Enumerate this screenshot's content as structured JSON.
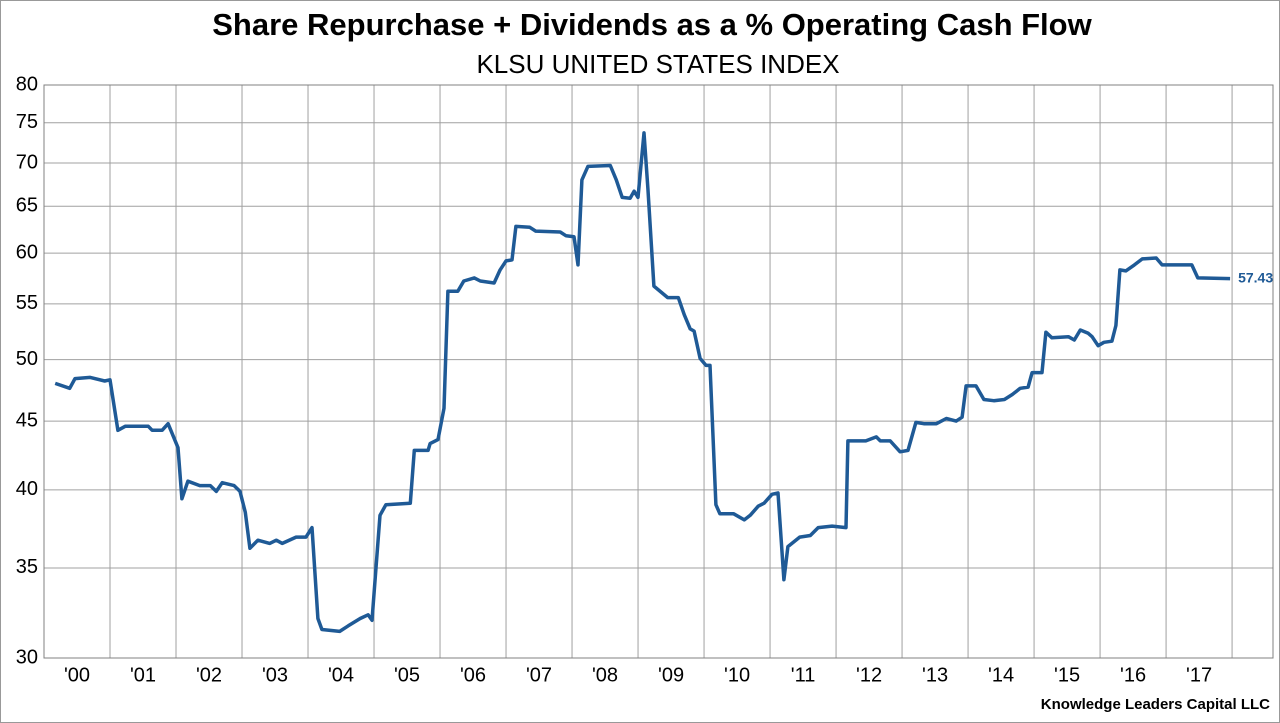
{
  "chart_data": {
    "type": "line",
    "title": "Share Repurchase + Dividends as a % Operating Cash Flow",
    "subtitle": "KLSU UNITED STATES INDEX",
    "source": "Knowledge Leaders Capital LLC",
    "color": "#1f5a96",
    "log_scale": true,
    "grid": true,
    "ylim": [
      30,
      80
    ],
    "yticks": [
      30,
      35,
      40,
      45,
      50,
      55,
      60,
      65,
      70,
      75,
      80
    ],
    "xlim": [
      2000,
      2018.62
    ],
    "xticks": [
      {
        "value": 2000,
        "label": "'00"
      },
      {
        "value": 2001,
        "label": "'01"
      },
      {
        "value": 2002,
        "label": "'02"
      },
      {
        "value": 2003,
        "label": "'03"
      },
      {
        "value": 2004,
        "label": "'04"
      },
      {
        "value": 2005,
        "label": "'05"
      },
      {
        "value": 2006,
        "label": "'06"
      },
      {
        "value": 2007,
        "label": "'07"
      },
      {
        "value": 2008,
        "label": "'08"
      },
      {
        "value": 2009,
        "label": "'09"
      },
      {
        "value": 2010,
        "label": "'10"
      },
      {
        "value": 2011,
        "label": "'11"
      },
      {
        "value": 2012,
        "label": "'12"
      },
      {
        "value": 2013,
        "label": "'13"
      },
      {
        "value": 2014,
        "label": "'14"
      },
      {
        "value": 2015,
        "label": "'15"
      },
      {
        "value": 2016,
        "label": "'16"
      },
      {
        "value": 2017,
        "label": "'17"
      },
      {
        "value": 2018,
        "label": null
      }
    ],
    "x": [
      2000.17,
      2000.39,
      2000.47,
      2000.7,
      2000.92,
      2001.0,
      2001.12,
      2001.23,
      2001.58,
      2001.64,
      2001.79,
      2001.88,
      2002.03,
      2002.09,
      2002.18,
      2002.36,
      2002.52,
      2002.61,
      2002.7,
      2002.88,
      2002.97,
      2003.05,
      2003.12,
      2003.24,
      2003.42,
      2003.52,
      2003.61,
      2003.82,
      2003.97,
      2004.06,
      2004.15,
      2004.21,
      2004.48,
      2004.61,
      2004.79,
      2004.91,
      2004.97,
      2005.09,
      2005.18,
      2005.55,
      2005.61,
      2005.82,
      2005.85,
      2005.97,
      2006.06,
      2006.12,
      2006.27,
      2006.36,
      2006.52,
      2006.61,
      2006.82,
      2006.91,
      2007.0,
      2007.09,
      2007.15,
      2007.36,
      2007.45,
      2007.82,
      2007.91,
      2008.03,
      2008.09,
      2008.15,
      2008.24,
      2008.58,
      2008.67,
      2008.76,
      2008.88,
      2008.94,
      2009.0,
      2009.09,
      2009.15,
      2009.24,
      2009.45,
      2009.61,
      2009.7,
      2009.79,
      2009.85,
      2009.94,
      2010.03,
      2010.09,
      2010.18,
      2010.24,
      2010.45,
      2010.61,
      2010.7,
      2010.82,
      2010.91,
      2011.03,
      2011.12,
      2011.21,
      2011.27,
      2011.45,
      2011.61,
      2011.73,
      2011.94,
      2012.15,
      2012.18,
      2012.45,
      2012.61,
      2012.67,
      2012.82,
      2012.97,
      2013.09,
      2013.21,
      2013.33,
      2013.52,
      2013.67,
      2013.82,
      2013.91,
      2013.97,
      2014.12,
      2014.24,
      2014.39,
      2014.55,
      2014.67,
      2014.79,
      2014.91,
      2014.97,
      2015.12,
      2015.18,
      2015.27,
      2015.52,
      2015.61,
      2015.7,
      2015.82,
      2015.88,
      2015.97,
      2016.06,
      2016.18,
      2016.24,
      2016.3,
      2016.39,
      2016.52,
      2016.64,
      2016.85,
      2016.94,
      2017.39,
      2017.48,
      2017.97
    ],
    "values": [
      48.0,
      47.6,
      48.4,
      48.5,
      48.2,
      48.3,
      44.3,
      44.6,
      44.6,
      44.3,
      44.3,
      44.8,
      43.0,
      39.4,
      40.6,
      40.3,
      40.3,
      39.9,
      40.5,
      40.3,
      39.9,
      38.5,
      36.2,
      36.7,
      36.5,
      36.7,
      36.5,
      36.9,
      36.9,
      37.5,
      32.1,
      31.5,
      31.4,
      31.7,
      32.1,
      32.3,
      32.0,
      38.3,
      39.0,
      39.1,
      42.8,
      42.8,
      43.3,
      43.6,
      46.0,
      56.2,
      56.2,
      57.2,
      57.5,
      57.2,
      57.0,
      58.3,
      59.2,
      59.3,
      62.8,
      62.7,
      62.3,
      62.2,
      61.8,
      61.7,
      58.8,
      68.0,
      69.6,
      69.7,
      68.0,
      66.0,
      65.9,
      66.7,
      66.0,
      73.7,
      67.0,
      56.7,
      55.6,
      55.6,
      54.0,
      52.7,
      52.5,
      50.1,
      49.5,
      49.5,
      39.0,
      38.4,
      38.4,
      38.0,
      38.3,
      38.9,
      39.1,
      39.7,
      39.8,
      34.3,
      36.3,
      36.9,
      37.0,
      37.5,
      37.6,
      37.5,
      43.5,
      43.5,
      43.8,
      43.5,
      43.5,
      42.7,
      42.8,
      44.9,
      44.8,
      44.8,
      45.2,
      45.0,
      45.3,
      47.8,
      47.8,
      46.7,
      46.6,
      46.7,
      47.1,
      47.6,
      47.7,
      48.9,
      48.9,
      52.4,
      51.9,
      52.0,
      51.7,
      52.6,
      52.3,
      52.0,
      51.2,
      51.5,
      51.6,
      53.0,
      58.3,
      58.2,
      58.8,
      59.4,
      59.5,
      58.8,
      58.8,
      57.5,
      57.43
    ]
  }
}
